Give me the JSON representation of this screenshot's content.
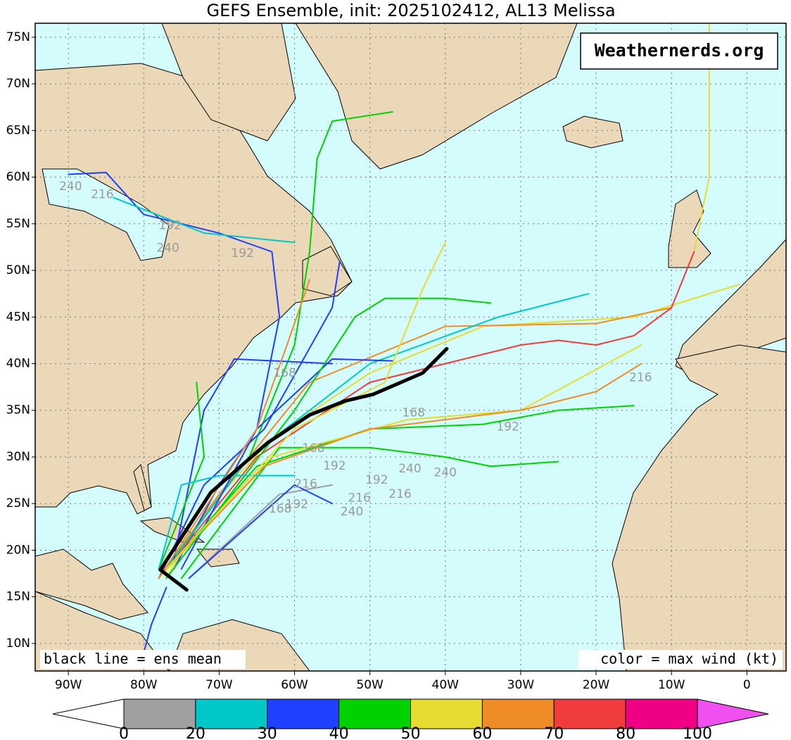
{
  "title": "GEFS Ensemble, init: 2025102412, AL13 Melissa",
  "watermark": "Weathernerds.org",
  "note_left": "black line = ens mean",
  "note_right": "color = max wind (kt)",
  "lon_ticks": [
    {
      "value": -90,
      "label": "90W"
    },
    {
      "value": -80,
      "label": "80W"
    },
    {
      "value": -70,
      "label": "70W"
    },
    {
      "value": -60,
      "label": "60W"
    },
    {
      "value": -50,
      "label": "50W"
    },
    {
      "value": -40,
      "label": "40W"
    },
    {
      "value": -30,
      "label": "30W"
    },
    {
      "value": -20,
      "label": "20W"
    },
    {
      "value": -10,
      "label": "10W"
    },
    0
  ],
  "lat_ticks": [
    {
      "value": 75,
      "label": "75N"
    },
    {
      "value": 70,
      "label": "70N"
    },
    {
      "value": 65,
      "label": "65N"
    },
    {
      "value": 60,
      "label": "60N"
    },
    {
      "value": 55,
      "label": "55N"
    },
    {
      "value": 50,
      "label": "50N"
    },
    {
      "value": 45,
      "label": "45N"
    },
    {
      "value": 40,
      "label": "40N"
    },
    {
      "value": 35,
      "label": "35N"
    },
    {
      "value": 30,
      "label": "30N"
    },
    {
      "value": 25,
      "label": "25N"
    },
    {
      "value": 20,
      "label": "20N"
    },
    {
      "value": 15,
      "label": "15N"
    },
    {
      "value": 10,
      "label": "10N"
    }
  ],
  "lonlim": [
    -94.4,
    5.2
  ],
  "latlim": [
    7.05,
    76.5
  ],
  "colorbar": {
    "bounds": [
      0,
      20,
      30,
      40,
      50,
      60,
      70,
      80,
      100
    ],
    "colors": [
      "#a0a0a0",
      "#00c8c8",
      "#2040ff",
      "#00d200",
      "#e6dc32",
      "#f08c28",
      "#f03c3c",
      "#f00082"
    ],
    "under_color": "#ffffff",
    "over_color": "#f050f0"
  },
  "mean_track": {
    "color": "#000000",
    "lon": [
      -74.3,
      -77.8,
      -71.1,
      -63.6,
      -58.0,
      -53.3,
      -49.6,
      -43.0,
      -39.8
    ],
    "lat": [
      15.75,
      17.9,
      26.2,
      31.5,
      34.5,
      36.0,
      36.7,
      39.0,
      41.6
    ]
  },
  "tracks": [
    {
      "color": "#e6dc32",
      "lon": [
        -77,
        -72,
        -63,
        -50,
        -35,
        -15,
        -1
      ],
      "lat": [
        17,
        24,
        32,
        39,
        44,
        45,
        48.5
      ]
    },
    {
      "color": "#f08c28",
      "lon": [
        -78,
        -70,
        -58,
        -40,
        -20,
        -10
      ],
      "lat": [
        17,
        26,
        38,
        44,
        44.3,
        46
      ]
    },
    {
      "color": "#e6dc32",
      "lon": [
        -7,
        -5,
        -5,
        -5
      ],
      "lat": [
        52,
        60,
        72,
        76.5
      ]
    },
    {
      "color": "#2040ff",
      "lon": [
        -76,
        -70,
        -65,
        -62,
        -63,
        -70,
        -80,
        -85,
        -90
      ],
      "lat": [
        18,
        27,
        33,
        45,
        52,
        54,
        56,
        60.5,
        60.3
      ]
    },
    {
      "color": "#00c8c8",
      "lon": [
        -60,
        -72,
        -84
      ],
      "lat": [
        53,
        54,
        57.8
      ]
    },
    {
      "color": "#00d200",
      "lon": [
        -78,
        -66,
        -60,
        -58,
        -57,
        -55,
        -47
      ],
      "lat": [
        17,
        30,
        42,
        52,
        62,
        66,
        67
      ]
    },
    {
      "color": "#f03c3c",
      "lon": [
        -78,
        -65,
        -50,
        -30,
        -25,
        -20,
        -15,
        -10,
        -7
      ],
      "lat": [
        17,
        30,
        38,
        42,
        42.5,
        42,
        43,
        46,
        52
      ]
    },
    {
      "color": "#00c8c8",
      "lon": [
        -77,
        -66,
        -50,
        -33,
        -21
      ],
      "lat": [
        18,
        30,
        40,
        45,
        47.5
      ]
    },
    {
      "color": "#2040ff",
      "lon": [
        -75,
        -65,
        -55,
        -47
      ],
      "lat": [
        18,
        33,
        40.5,
        40.3
      ]
    },
    {
      "color": "#00d200",
      "lon": [
        -78,
        -65,
        -50,
        -35,
        -25,
        -15
      ],
      "lat": [
        17,
        29,
        33,
        33.5,
        35,
        35.5
      ]
    },
    {
      "color": "#00d200",
      "lon": [
        -75,
        -62,
        -50,
        -40,
        -34,
        -25
      ],
      "lat": [
        17,
        31,
        31,
        30,
        29,
        29.5
      ]
    },
    {
      "color": "#e6dc32",
      "lon": [
        -78,
        -63,
        -45,
        -30,
        -14
      ],
      "lat": [
        17,
        30,
        34,
        35,
        42
      ]
    },
    {
      "color": "#f08c28",
      "lon": [
        -77,
        -64,
        -50,
        -30,
        -20,
        -14
      ],
      "lat": [
        18,
        29,
        33,
        35,
        37,
        40
      ]
    },
    {
      "color": "#2040ff",
      "lon": [
        -76,
        -72,
        -68,
        -55
      ],
      "lat": [
        19,
        35,
        40.5,
        40
      ]
    },
    {
      "color": "#00d200",
      "lon": [
        -78,
        -72,
        -73
      ],
      "lat": [
        18,
        30,
        38
      ]
    },
    {
      "color": "#2040ff",
      "lon": [
        -78,
        -72,
        -64,
        -55,
        -54
      ],
      "lat": [
        17,
        27,
        33,
        46,
        51
      ]
    },
    {
      "color": "#f08c28",
      "lon": [
        -78,
        -65,
        -61,
        -58
      ],
      "lat": [
        17,
        33,
        42,
        49
      ]
    },
    {
      "color": "#00d200",
      "lon": [
        -77,
        -60,
        -52,
        -48,
        -40,
        -34
      ],
      "lat": [
        17,
        35,
        45,
        47,
        47,
        46.5
      ]
    },
    {
      "color": "#a0a0a0",
      "lon": [
        -74,
        -62,
        -55
      ],
      "lat": [
        17,
        26,
        27
      ]
    },
    {
      "color": "#00c8c8",
      "lon": [
        -78,
        -75,
        -70,
        -60
      ],
      "lat": [
        18,
        27,
        28,
        28
      ]
    },
    {
      "color": "#2040ff",
      "lon": [
        -74,
        -60,
        -55
      ],
      "lat": [
        17,
        27,
        25
      ]
    },
    {
      "color": "#e6dc32",
      "lon": [
        -77,
        -60,
        -48,
        -43,
        -40
      ],
      "lat": [
        18,
        33,
        38,
        48,
        53
      ]
    },
    {
      "color": "#2040ff",
      "lon": [
        -77,
        -79,
        -80
      ],
      "lat": [
        16,
        12,
        9
      ]
    }
  ],
  "hour_labels": [
    {
      "text": "240",
      "lon": -89.7,
      "lat": 59.0
    },
    {
      "text": "216",
      "lon": -85.5,
      "lat": 58.1
    },
    {
      "text": "192",
      "lon": -76.5,
      "lat": 54.8
    },
    {
      "text": "240",
      "lon": -76.8,
      "lat": 52.4
    },
    {
      "text": "192",
      "lon": -66.9,
      "lat": 51.8
    },
    {
      "text": "168",
      "lon": -61.3,
      "lat": 39.0
    },
    {
      "text": "168",
      "lon": -44.2,
      "lat": 34.7
    },
    {
      "text": "192",
      "lon": -31.7,
      "lat": 33.2
    },
    {
      "text": "216",
      "lon": -14.1,
      "lat": 38.5
    },
    {
      "text": "240",
      "lon": -40.0,
      "lat": 28.3
    },
    {
      "text": "240",
      "lon": -44.7,
      "lat": 28.7
    },
    {
      "text": "192",
      "lon": -49.1,
      "lat": 27.5
    },
    {
      "text": "216",
      "lon": -46.0,
      "lat": 26.0
    },
    {
      "text": "240",
      "lon": -52.4,
      "lat": 24.1
    },
    {
      "text": "216",
      "lon": -51.4,
      "lat": 25.6
    },
    {
      "text": "192",
      "lon": -54.7,
      "lat": 29.0
    },
    {
      "text": "216",
      "lon": -58.5,
      "lat": 27.1
    },
    {
      "text": "192",
      "lon": -59.7,
      "lat": 24.9
    },
    {
      "text": "168",
      "lon": -61.9,
      "lat": 24.4
    },
    {
      "text": "168",
      "lon": -57.5,
      "lat": 30.9
    }
  ]
}
